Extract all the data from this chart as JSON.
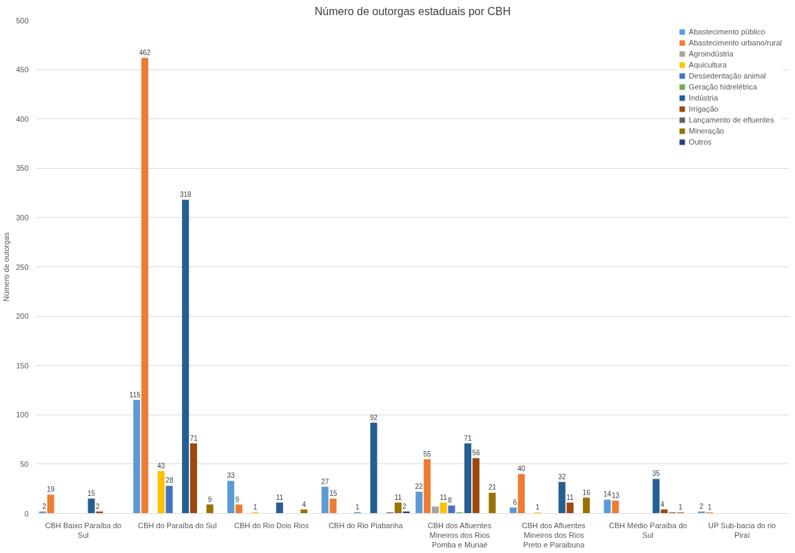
{
  "chart_data": {
    "type": "bar",
    "title": "Número de outorgas estaduais por CBH",
    "ylabel": "Número de outorgas",
    "categories": [
      "CBH Baixo Paraíba do Sul",
      "CBH do Paraíba do Sul",
      "CBH do Rio Dois Rios",
      "CBH do Rio Piabanha",
      "CBH dos Afluentes Mineiros dos Rios Pomba e Muriaé",
      "CBH dos Afluentes Mineiros dos Rios Preto e Paraibuna",
      "CBH Médio Paraíba do Sul",
      "UP Sub-bacia do rio Piraí"
    ],
    "ylim": [
      0,
      500
    ],
    "yticks": [
      0,
      50,
      100,
      150,
      200,
      250,
      300,
      350,
      400,
      450,
      500
    ],
    "grid": "y",
    "legend": "top right",
    "series": [
      {
        "name": "Abastecimento público",
        "color": "#5b9bd5",
        "values": [
          2,
          115,
          33,
          27,
          22,
          6,
          14,
          2
        ],
        "value_labels": [
          "2",
          "115",
          "33",
          "27",
          "22",
          "6",
          "14",
          "2"
        ]
      },
      {
        "name": "Abastecimento urbano/rural",
        "color": "#ed7d31",
        "values": [
          19,
          462,
          9,
          15,
          55,
          40,
          13,
          1
        ],
        "value_labels": [
          "19",
          "462",
          "9",
          "15",
          "55",
          "40",
          "13",
          "1"
        ]
      },
      {
        "name": "Agroindústria",
        "color": "#a5a5a5",
        "values": [
          null,
          null,
          null,
          null,
          7,
          null,
          null,
          null
        ],
        "value_labels": [
          null,
          null,
          null,
          null,
          null,
          null,
          null,
          null
        ]
      },
      {
        "name": "Aquicultura",
        "color": "#ffc000",
        "values": [
          null,
          43,
          1,
          null,
          11,
          1,
          null,
          null
        ],
        "value_labels": [
          null,
          "43",
          "1",
          null,
          "11",
          "1",
          null,
          null
        ]
      },
      {
        "name": "Dessedentação animal",
        "color": "#4472c4",
        "values": [
          null,
          28,
          null,
          1,
          8,
          null,
          null,
          null
        ],
        "value_labels": [
          null,
          "28",
          null,
          "1",
          "8",
          null,
          null,
          null
        ]
      },
      {
        "name": "Geração hidrelétrica",
        "color": "#70ad47",
        "values": [
          null,
          null,
          null,
          null,
          1,
          null,
          null,
          null
        ],
        "value_labels": [
          null,
          null,
          null,
          null,
          null,
          null,
          null,
          null
        ]
      },
      {
        "name": "Indústria",
        "color": "#255e91",
        "values": [
          15,
          318,
          11,
          92,
          71,
          32,
          35,
          null
        ],
        "value_labels": [
          "15",
          "318",
          "11",
          "92",
          "71",
          "32",
          "35",
          null
        ]
      },
      {
        "name": "Irrigação",
        "color": "#9e480e",
        "values": [
          2,
          71,
          null,
          null,
          56,
          11,
          4,
          null
        ],
        "value_labels": [
          "2",
          "71",
          null,
          null,
          "56",
          "11",
          "4",
          null
        ]
      },
      {
        "name": "Lançamento de efluentes",
        "color": "#636363",
        "values": [
          null,
          null,
          null,
          1,
          null,
          null,
          1,
          null
        ],
        "value_labels": [
          null,
          null,
          null,
          null,
          null,
          null,
          null,
          null
        ]
      },
      {
        "name": "Mineração",
        "color": "#997300",
        "values": [
          null,
          9,
          4,
          11,
          21,
          16,
          1,
          null
        ],
        "value_labels": [
          null,
          "9",
          "4",
          "11",
          "21",
          "16",
          "1",
          null
        ]
      },
      {
        "name": "Outros",
        "color": "#264478",
        "values": [
          null,
          null,
          null,
          2,
          null,
          null,
          null,
          null
        ],
        "value_labels": [
          null,
          null,
          null,
          "2",
          null,
          null,
          null,
          null
        ]
      }
    ]
  }
}
